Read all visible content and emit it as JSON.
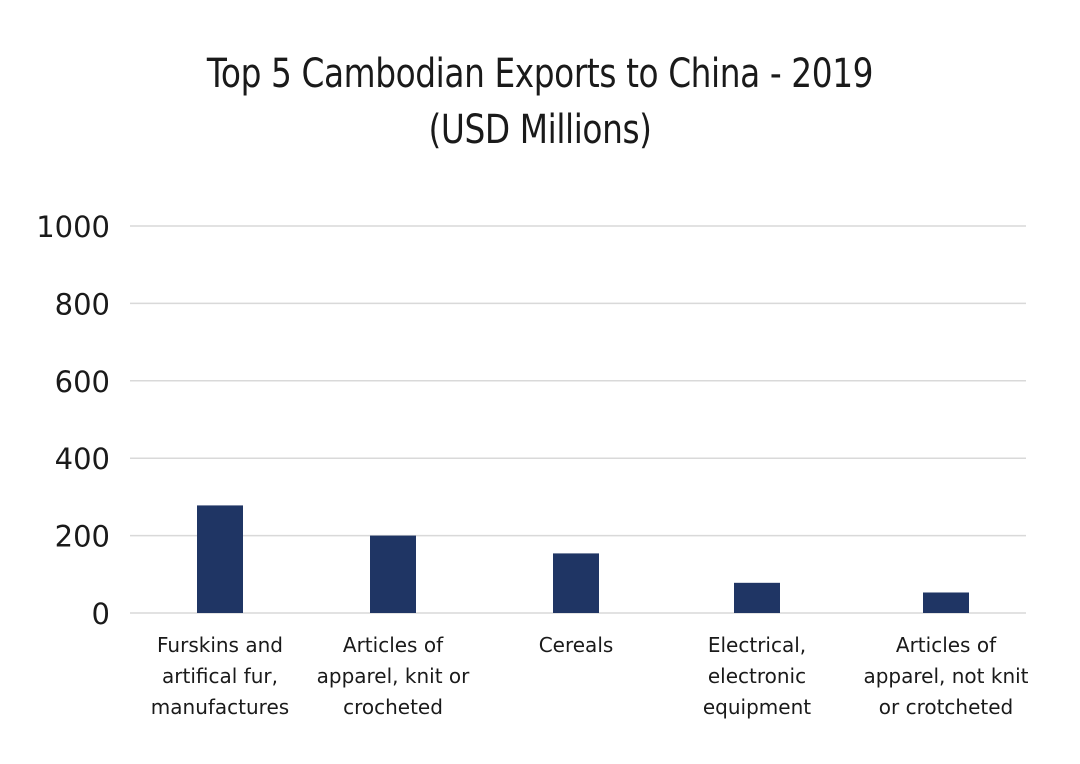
{
  "chart_data": {
    "type": "bar",
    "title": "Top 5 Cambodian Exports to China - 2019",
    "subtitle": "(USD Millions)",
    "categories": [
      "Furskins and artifical fur, manufactures",
      "Articles of apparel, knit or crocheted",
      "Cereals",
      "Electrical, electronic equipment",
      "Articles of apparel, not knit or crotcheted"
    ],
    "category_label_lines": [
      [
        "Furskins and",
        "artifical fur,",
        "manufactures"
      ],
      [
        "Articles of",
        "apparel, knit or",
        "crocheted"
      ],
      [
        "Cereals"
      ],
      [
        "Electrical,",
        "electronic",
        "equipment"
      ],
      [
        "Articles of",
        "apparel, not knit",
        "or crotcheted"
      ]
    ],
    "values": [
      278,
      200,
      154,
      78,
      53
    ],
    "yticks": [
      "0",
      "200",
      "400",
      "600",
      "800",
      "1000"
    ],
    "ylim": [
      0,
      1000
    ],
    "xlabel": "",
    "ylabel": "",
    "grid": true,
    "legend": "none",
    "bar_color": "#1f3564",
    "grid_color": "#d9d9d9"
  }
}
